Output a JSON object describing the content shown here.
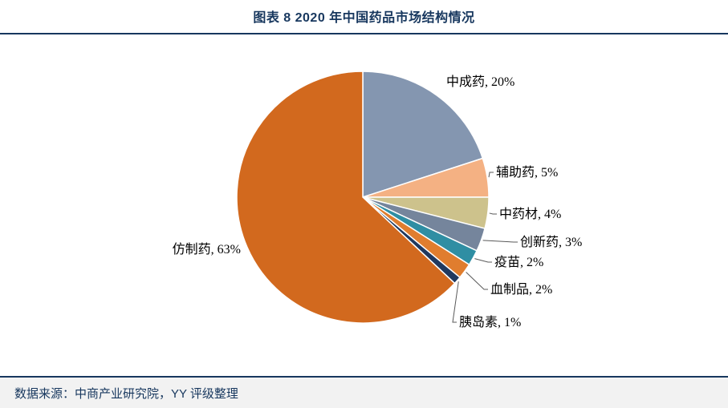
{
  "header": {
    "title": "图表 8 2020 年中国药品市场结构情况"
  },
  "footer": {
    "source": "数据来源：中商产业研究院，YY 评级整理"
  },
  "chart_data": {
    "type": "pie",
    "title": "图表 8 2020 年中国药品市场结构情况",
    "start_angle_deg": 0,
    "direction": "clockwise",
    "label_format": "{label}, {value}%",
    "slices": [
      {
        "label": "中成药",
        "value": 20,
        "color": "#8496B0"
      },
      {
        "label": "辅助药",
        "value": 5,
        "color": "#F4B183"
      },
      {
        "label": "中药材",
        "value": 4,
        "color": "#CDC28C"
      },
      {
        "label": "创新药",
        "value": 3,
        "color": "#75859C"
      },
      {
        "label": "疫苗",
        "value": 2,
        "color": "#2F8EA3"
      },
      {
        "label": "血制品",
        "value": 2,
        "color": "#E07D2E"
      },
      {
        "label": "胰岛素",
        "value": 1,
        "color": "#20395F"
      },
      {
        "label": "仿制药",
        "value": 63,
        "color": "#D2691E"
      }
    ],
    "colors": {
      "leader_line": "#595959",
      "label_text": "#000000",
      "slice_border": "#ffffff"
    }
  },
  "theme": {
    "accent_navy": "#17375E",
    "rule_color": "#17375E",
    "source_bar_bg": "#F2F2F2"
  }
}
